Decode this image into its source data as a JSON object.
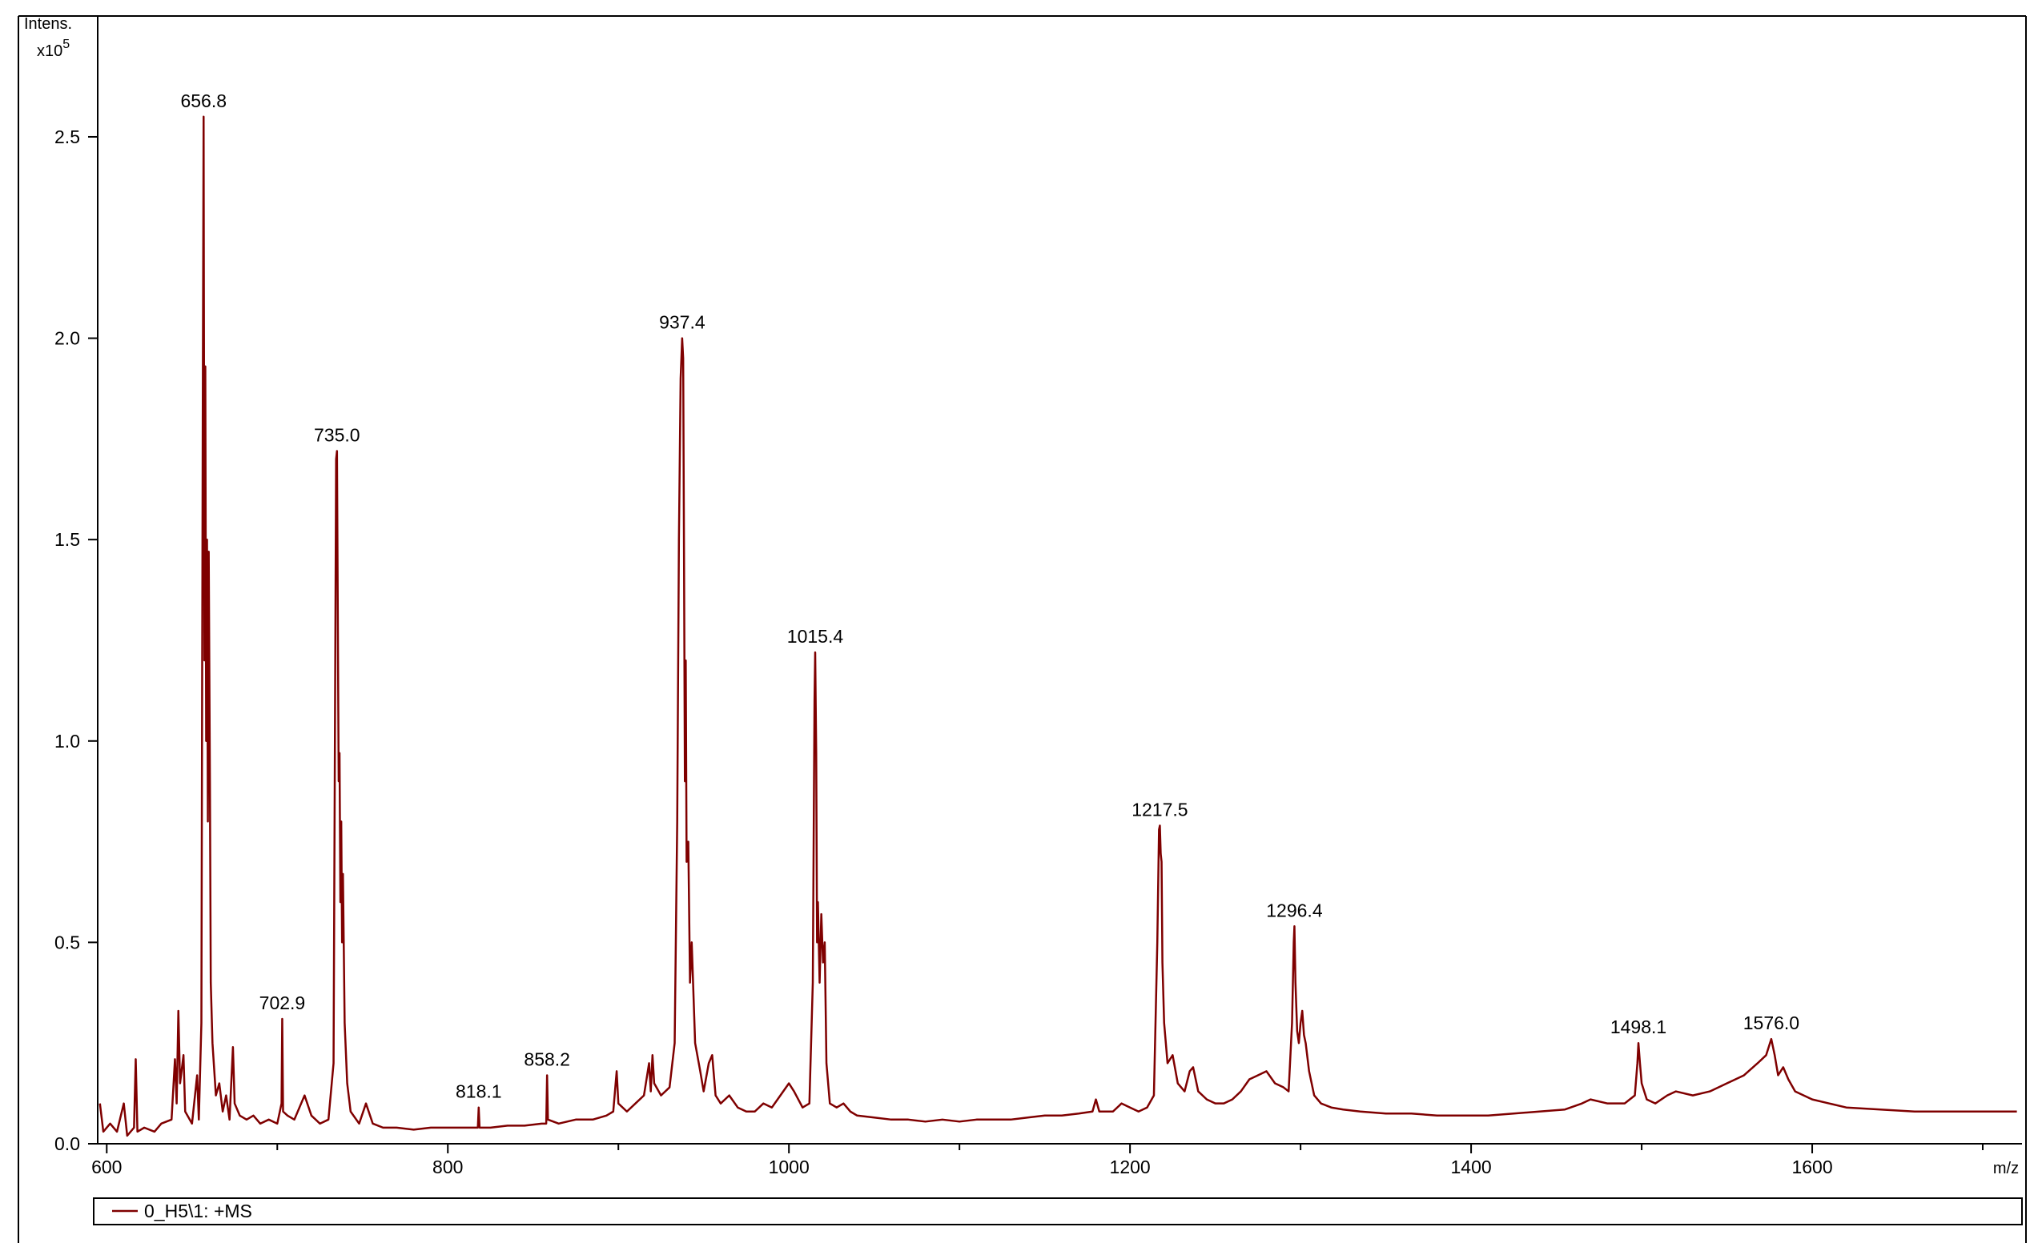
{
  "chart_data": {
    "type": "line",
    "y_label": "Intens.",
    "y_scale": "x10",
    "y_scale_exp": "5",
    "x_label": "m/z",
    "xlim": [
      594.7,
      1723
    ],
    "ylim": [
      0,
      2.8
    ],
    "xticks": [
      600,
      800,
      1000,
      1200,
      1400,
      1600
    ],
    "xminor": [
      700,
      900,
      1100,
      1300,
      1500,
      1700
    ],
    "yticks": [
      {
        "value": 0,
        "label": "0.0"
      },
      0.5,
      {
        "value": 1,
        "label": "1.0"
      },
      1.5,
      {
        "value": 2,
        "label": "2.0"
      },
      2.5
    ],
    "legend": "bottom",
    "series": [
      {
        "name": "0_H5\\1: +MS",
        "color": "#7f0000",
        "x": [
          596,
          598,
          602,
          606,
          610,
          612,
          616,
          617,
          618,
          622,
          628,
          632,
          638,
          640,
          641,
          642,
          643,
          645,
          646,
          650,
          653,
          654,
          655.5,
          656.3,
          656.8,
          657.3,
          657.8,
          658.3,
          658.8,
          659.3,
          659.8,
          660.5,
          661,
          662,
          664,
          666,
          668,
          670,
          672,
          674,
          675,
          678,
          682,
          686,
          690,
          695,
          700,
          702.5,
          702.9,
          703.4,
          706,
          710,
          714,
          716,
          720,
          725,
          730,
          733,
          734,
          734.5,
          735.0,
          735.5,
          736,
          736.5,
          737,
          737.5,
          738,
          738.5,
          739.5,
          741,
          743,
          748,
          752,
          756,
          762,
          770,
          780,
          790,
          800,
          810,
          817.6,
          818.1,
          818.6,
          825,
          835,
          845,
          855,
          857.7,
          858.2,
          858.7,
          865,
          875,
          885,
          893,
          897,
          899,
          900,
          905,
          910,
          915,
          918,
          919,
          920,
          921,
          925,
          930,
          933,
          934.5,
          935.5,
          936.5,
          937.4,
          938,
          938.5,
          939,
          939.5,
          940,
          941,
          942,
          943,
          945,
          948,
          950,
          953,
          955,
          957,
          960,
          965,
          970,
          975,
          980,
          985,
          990,
          995,
          1000,
          1003,
          1008,
          1012,
          1014,
          1015,
          1015.4,
          1016,
          1016.5,
          1017,
          1018,
          1019,
          1020,
          1021,
          1022,
          1024,
          1028,
          1032,
          1036,
          1040,
          1050,
          1060,
          1070,
          1080,
          1090,
          1100,
          1110,
          1120,
          1130,
          1140,
          1150,
          1160,
          1170,
          1178,
          1180,
          1182,
          1190,
          1195,
          1200,
          1205,
          1210,
          1214,
          1216,
          1217,
          1217.5,
          1218,
          1218.5,
          1219,
          1220,
          1222,
          1225,
          1228,
          1232,
          1235,
          1237,
          1240,
          1245,
          1250,
          1255,
          1260,
          1265,
          1270,
          1275,
          1280,
          1285,
          1290,
          1293,
          1295,
          1296,
          1296.4,
          1297,
          1298,
          1299,
          1300,
          1301,
          1302,
          1303,
          1305,
          1308,
          1312,
          1318,
          1325,
          1335,
          1350,
          1365,
          1380,
          1395,
          1410,
          1425,
          1440,
          1455,
          1465,
          1470,
          1480,
          1490,
          1496,
          1497.5,
          1498.1,
          1499,
          1500,
          1503,
          1508,
          1515,
          1520,
          1530,
          1540,
          1550,
          1560,
          1568,
          1573,
          1576,
          1578,
          1580,
          1583,
          1586,
          1590,
          1600,
          1610,
          1620,
          1640,
          1660,
          1680,
          1700,
          1720
        ],
        "values": [
          0.1,
          0.03,
          0.05,
          0.03,
          0.1,
          0.02,
          0.04,
          0.21,
          0.03,
          0.04,
          0.03,
          0.05,
          0.06,
          0.21,
          0.1,
          0.33,
          0.15,
          0.22,
          0.08,
          0.05,
          0.17,
          0.06,
          0.3,
          1.8,
          2.55,
          1.2,
          1.93,
          1.0,
          1.5,
          0.8,
          1.47,
          0.9,
          0.4,
          0.25,
          0.12,
          0.15,
          0.08,
          0.12,
          0.06,
          0.24,
          0.1,
          0.07,
          0.06,
          0.07,
          0.05,
          0.06,
          0.05,
          0.1,
          0.31,
          0.08,
          0.07,
          0.06,
          0.1,
          0.12,
          0.07,
          0.05,
          0.06,
          0.2,
          1.2,
          1.7,
          1.72,
          1.3,
          0.9,
          0.97,
          0.6,
          0.8,
          0.5,
          0.67,
          0.3,
          0.15,
          0.08,
          0.05,
          0.1,
          0.05,
          0.04,
          0.04,
          0.035,
          0.04,
          0.04,
          0.04,
          0.04,
          0.09,
          0.04,
          0.04,
          0.045,
          0.045,
          0.05,
          0.05,
          0.17,
          0.06,
          0.05,
          0.06,
          0.06,
          0.07,
          0.08,
          0.18,
          0.1,
          0.08,
          0.1,
          0.12,
          0.2,
          0.13,
          0.22,
          0.15,
          0.12,
          0.14,
          0.25,
          0.8,
          1.5,
          1.9,
          2.0,
          1.95,
          1.45,
          0.9,
          1.2,
          0.7,
          0.75,
          0.4,
          0.5,
          0.25,
          0.18,
          0.13,
          0.2,
          0.22,
          0.12,
          0.1,
          0.12,
          0.09,
          0.08,
          0.08,
          0.1,
          0.09,
          0.12,
          0.15,
          0.13,
          0.09,
          0.1,
          0.4,
          1.1,
          1.22,
          0.97,
          0.5,
          0.6,
          0.4,
          0.57,
          0.45,
          0.5,
          0.2,
          0.1,
          0.09,
          0.1,
          0.08,
          0.07,
          0.065,
          0.06,
          0.06,
          0.055,
          0.06,
          0.055,
          0.06,
          0.06,
          0.06,
          0.065,
          0.07,
          0.07,
          0.075,
          0.08,
          0.11,
          0.08,
          0.08,
          0.1,
          0.09,
          0.08,
          0.09,
          0.12,
          0.5,
          0.78,
          0.79,
          0.72,
          0.7,
          0.45,
          0.3,
          0.2,
          0.22,
          0.15,
          0.13,
          0.18,
          0.19,
          0.13,
          0.11,
          0.1,
          0.1,
          0.11,
          0.13,
          0.16,
          0.17,
          0.18,
          0.15,
          0.14,
          0.13,
          0.3,
          0.5,
          0.54,
          0.4,
          0.28,
          0.25,
          0.3,
          0.33,
          0.27,
          0.25,
          0.18,
          0.12,
          0.1,
          0.09,
          0.085,
          0.08,
          0.075,
          0.075,
          0.07,
          0.07,
          0.07,
          0.075,
          0.08,
          0.085,
          0.1,
          0.11,
          0.1,
          0.1,
          0.12,
          0.2,
          0.25,
          0.2,
          0.15,
          0.11,
          0.1,
          0.12,
          0.13,
          0.12,
          0.13,
          0.15,
          0.17,
          0.2,
          0.22,
          0.26,
          0.22,
          0.17,
          0.19,
          0.16,
          0.13,
          0.11,
          0.1,
          0.09,
          0.085,
          0.08,
          0.08,
          0.08,
          0.08
        ]
      }
    ],
    "peaks": [
      {
        "label": "656.8",
        "x": 656.8,
        "y": 2.55
      },
      {
        "label": "702.9",
        "x": 702.9,
        "y": 0.31
      },
      {
        "label": "735.0",
        "x": 735.0,
        "y": 1.72
      },
      {
        "label": "818.1",
        "x": 818.1,
        "y": 0.09
      },
      {
        "label": "858.2",
        "x": 858.2,
        "y": 0.17
      },
      {
        "label": "937.4",
        "x": 937.4,
        "y": 2.0
      },
      {
        "label": "1015.4",
        "x": 1015.4,
        "y": 1.22
      },
      {
        "label": "1217.5",
        "x": 1217.5,
        "y": 0.79
      },
      {
        "label": "1296.4",
        "x": 1296.4,
        "y": 0.54
      },
      {
        "label": "1498.1",
        "x": 1498.1,
        "y": 0.25
      },
      {
        "label": "1576.0",
        "x": 1576.0,
        "y": 0.26
      }
    ]
  }
}
